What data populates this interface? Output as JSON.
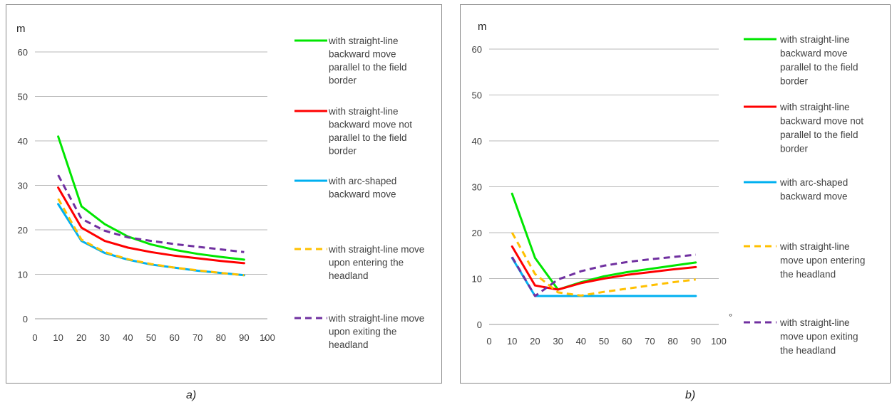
{
  "chart_data": [
    {
      "type": "line",
      "panel_caption": "a)",
      "ylabel": "m",
      "xlim": [
        0,
        100
      ],
      "ylim": [
        0,
        60
      ],
      "x_ticks": [
        "0",
        "10",
        "20",
        "30",
        "40",
        "50",
        "60",
        "70",
        "80",
        "90",
        "100"
      ],
      "y_ticks": [
        "0",
        "10",
        "20",
        "30",
        "40",
        "50",
        "60"
      ],
      "extra_mark": "°",
      "grid": "horizontal",
      "legend_position": "right",
      "x": [
        10,
        20,
        30,
        40,
        50,
        60,
        70,
        80,
        90
      ],
      "series": [
        {
          "name": "with straight-line backward move parallel to the field border",
          "name_lines": [
            "with straight-line",
            "backward move",
            "parallel to the field",
            "border"
          ],
          "color": "#00E600",
          "dash": "solid",
          "values": [
            41,
            25.3,
            21.3,
            18.5,
            16.7,
            15.5,
            14.6,
            13.9,
            13.3
          ]
        },
        {
          "name": "with straight-line backward move not parallel to the field border",
          "name_lines": [
            "with straight-line",
            "backward move not",
            "parallel to the field",
            "border"
          ],
          "color": "#FF0000",
          "dash": "solid",
          "values": [
            29.5,
            20.5,
            17.5,
            16,
            15,
            14.2,
            13.6,
            13,
            12.5
          ]
        },
        {
          "name": "with arc-shaped backward move",
          "name_lines": [
            "with arc-shaped",
            "backward move"
          ],
          "color": "#00B0F0",
          "dash": "solid",
          "values": [
            25.8,
            17.5,
            14.8,
            13.3,
            12.2,
            11.5,
            10.8,
            10.3,
            9.8
          ]
        },
        {
          "name": "with straight-line move upon entering the headland",
          "name_lines": [
            "with straight-line move",
            "upon entering the",
            "headland"
          ],
          "color": "#FFC000",
          "dash": "dash",
          "values": [
            27,
            17.8,
            15,
            13.4,
            12.3,
            11.5,
            10.9,
            10.3,
            9.8
          ]
        },
        {
          "name": "with straight-line move upon exiting the headland",
          "name_lines": [
            "with straight-line move",
            "upon exiting the",
            "headland"
          ],
          "color": "#7030A0",
          "dash": "dash",
          "values": [
            32.3,
            22.5,
            19.8,
            18.3,
            17.5,
            16.8,
            16.2,
            15.6,
            15
          ]
        }
      ]
    },
    {
      "type": "line",
      "panel_caption": "b)",
      "ylabel": "m",
      "xlim": [
        0,
        100
      ],
      "ylim": [
        0,
        60
      ],
      "x_ticks": [
        "0",
        "10",
        "20",
        "30",
        "40",
        "50",
        "60",
        "70",
        "80",
        "90",
        "100"
      ],
      "y_ticks": [
        "0",
        "10",
        "20",
        "30",
        "40",
        "50",
        "60"
      ],
      "extra_mark": "°",
      "grid": "horizontal",
      "legend_position": "right",
      "x": [
        10,
        20,
        30,
        40,
        50,
        60,
        70,
        80,
        90
      ],
      "series": [
        {
          "name": "with straight-line backward move parallel to the field border",
          "name_lines": [
            "with straight-line",
            "backward move",
            "parallel to the field",
            "border"
          ],
          "color": "#00E600",
          "dash": "solid",
          "values": [
            28.5,
            14.5,
            7.6,
            9.2,
            10.5,
            11.4,
            12.1,
            12.8,
            13.5
          ]
        },
        {
          "name": "with straight-line backward move not parallel to the field border",
          "name_lines": [
            "with straight-line",
            "backward move not",
            "parallel to the field",
            "border"
          ],
          "color": "#FF0000",
          "dash": "solid",
          "values": [
            17,
            8.5,
            7.6,
            9,
            10,
            10.8,
            11.4,
            12,
            12.5
          ]
        },
        {
          "name": "with arc-shaped backward move",
          "name_lines": [
            "with arc-shaped",
            "backward move"
          ],
          "color": "#00B0F0",
          "dash": "solid",
          "values": [
            14.5,
            6.2,
            6.2,
            6.2,
            6.2,
            6.2,
            6.2,
            6.2,
            6.2
          ]
        },
        {
          "name": "with straight-line move upon entering the headland",
          "name_lines": [
            "with straight-line",
            "move upon entering",
            "the headland"
          ],
          "color": "#FFC000",
          "dash": "dash",
          "values": [
            20,
            11,
            7,
            6.3,
            7.1,
            7.8,
            8.5,
            9.2,
            9.8
          ]
        },
        {
          "name": "with straight-line move upon exiting the headland",
          "name_lines": [
            "with straight-line",
            "move upon exiting",
            "the headland"
          ],
          "color": "#7030A0",
          "dash": "dash",
          "values": [
            14.7,
            6.2,
            9.8,
            11.6,
            12.8,
            13.6,
            14.2,
            14.7,
            15.2
          ]
        }
      ]
    }
  ]
}
